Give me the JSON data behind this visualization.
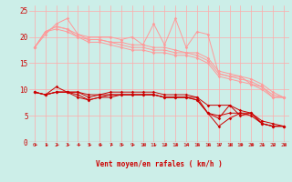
{
  "xlabel": "Vent moyen/en rafales ( km/h )",
  "bg_color": "#cceee8",
  "grid_color": "#ffaaaa",
  "xlim": [
    -0.5,
    23.5
  ],
  "ylim": [
    0,
    26
  ],
  "yticks": [
    0,
    5,
    10,
    15,
    20,
    25
  ],
  "xticks": [
    0,
    1,
    2,
    3,
    4,
    5,
    6,
    7,
    8,
    9,
    10,
    11,
    12,
    13,
    14,
    15,
    16,
    17,
    18,
    19,
    20,
    21,
    22,
    23
  ],
  "pink_lines": [
    [
      18.0,
      20.5,
      22.5,
      23.5,
      20.5,
      20.0,
      20.0,
      20.0,
      19.5,
      20.0,
      18.5,
      22.5,
      18.5,
      23.5,
      18.0,
      21.0,
      20.5,
      13.0,
      12.5,
      12.5,
      11.0,
      10.5,
      8.5,
      8.5
    ],
    [
      18.0,
      21.0,
      22.0,
      21.5,
      20.5,
      19.5,
      19.5,
      19.0,
      19.0,
      18.5,
      18.5,
      18.0,
      18.0,
      17.5,
      17.0,
      17.0,
      16.0,
      13.5,
      13.0,
      12.5,
      12.0,
      11.0,
      9.5,
      8.5
    ],
    [
      18.0,
      21.0,
      22.0,
      21.5,
      20.0,
      19.5,
      19.5,
      19.0,
      18.5,
      18.0,
      18.0,
      17.5,
      17.5,
      17.0,
      17.0,
      16.5,
      15.5,
      13.0,
      12.5,
      12.0,
      11.5,
      10.5,
      9.0,
      8.5
    ],
    [
      18.0,
      21.0,
      21.5,
      21.0,
      20.0,
      19.0,
      19.0,
      18.5,
      18.0,
      17.5,
      17.5,
      17.0,
      17.0,
      16.5,
      16.5,
      16.0,
      15.0,
      12.5,
      12.0,
      11.5,
      11.0,
      10.0,
      8.5,
      8.5
    ]
  ],
  "red_lines": [
    [
      9.5,
      9.0,
      10.5,
      9.5,
      9.5,
      8.5,
      9.0,
      9.0,
      9.0,
      9.0,
      9.0,
      9.0,
      8.5,
      8.5,
      8.5,
      8.5,
      5.5,
      3.0,
      4.5,
      5.5,
      5.5,
      3.5,
      3.0,
      3.0
    ],
    [
      9.5,
      9.0,
      9.5,
      9.5,
      9.0,
      8.0,
      8.5,
      9.0,
      9.0,
      9.0,
      9.0,
      9.0,
      8.5,
      8.5,
      8.5,
      8.0,
      5.5,
      4.5,
      7.0,
      5.0,
      5.5,
      3.5,
      3.0,
      3.0
    ],
    [
      9.5,
      9.0,
      9.5,
      9.5,
      9.5,
      9.0,
      9.0,
      9.5,
      9.5,
      9.5,
      9.5,
      9.5,
      9.0,
      9.0,
      9.0,
      8.5,
      7.0,
      7.0,
      7.0,
      6.0,
      5.5,
      4.0,
      3.5,
      3.0
    ],
    [
      9.5,
      9.0,
      9.5,
      9.5,
      8.5,
      8.0,
      8.5,
      8.5,
      9.0,
      9.0,
      9.0,
      9.0,
      8.5,
      8.5,
      8.5,
      8.0,
      5.5,
      5.0,
      5.5,
      5.5,
      5.0,
      3.5,
      3.0,
      3.0
    ]
  ],
  "pink_color": "#ff9999",
  "red_color": "#cc0000",
  "pink_lw": 0.7,
  "red_lw": 0.7,
  "marker_size": 1.8
}
